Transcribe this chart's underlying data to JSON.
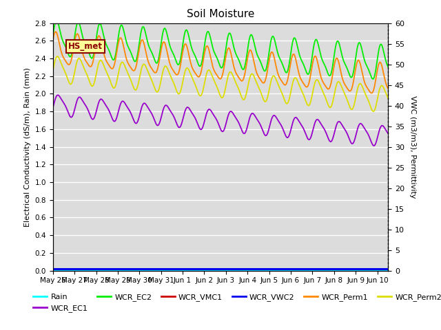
{
  "title": "Soil Moisture",
  "ylabel_left": "Electrical Conductivity (dS/m), Rain (mm)",
  "ylabel_right": "VWC (m3/m3), Permittivity",
  "ylim_left": [
    0.0,
    2.8
  ],
  "ylim_right": [
    0,
    60
  ],
  "yticks_left": [
    0.0,
    0.2,
    0.4,
    0.6,
    0.8,
    1.0,
    1.2,
    1.4,
    1.6,
    1.8,
    2.0,
    2.2,
    2.4,
    2.6,
    2.8
  ],
  "yticks_right": [
    0,
    5,
    10,
    15,
    20,
    25,
    30,
    35,
    40,
    45,
    50,
    55,
    60
  ],
  "annotation_text": "HS_met",
  "legend_items": [
    "Rain",
    "WCR_EC1",
    "WCR_EC2",
    "WCR_VMC1",
    "WCR_VWC2",
    "WCR_Perm1",
    "WCR_Perm2"
  ],
  "legend_colors": [
    "#00FFFF",
    "#9900CC",
    "#00EE00",
    "#CC0000",
    "#0000EE",
    "#FF8800",
    "#DDDD00"
  ],
  "background_color": "#DCDCDC",
  "grid_color": "#FFFFFF",
  "title_fontsize": 11
}
